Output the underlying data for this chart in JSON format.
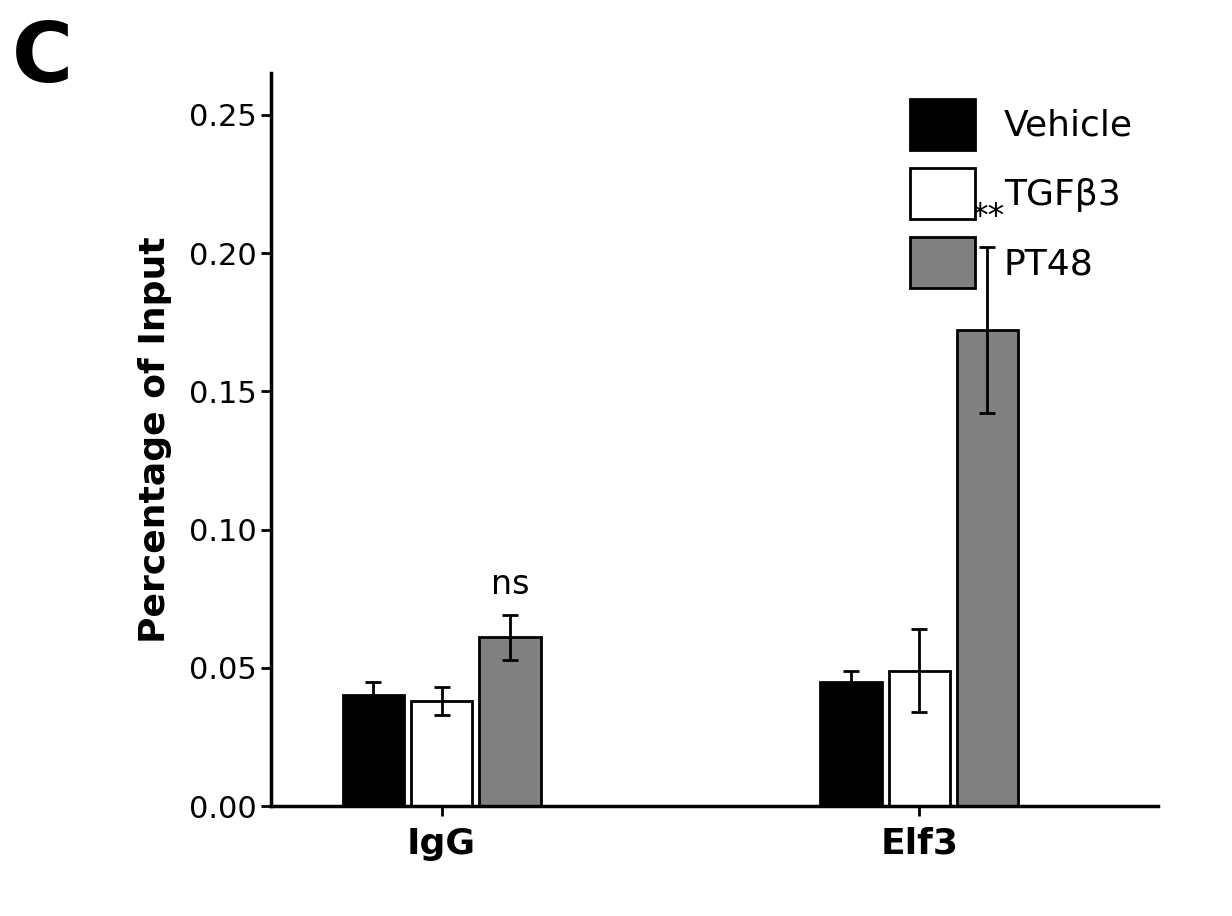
{
  "groups": [
    "IgG",
    "Elf3"
  ],
  "conditions": [
    "Vehicle",
    "TGFβ3",
    "PT48"
  ],
  "bar_colors": [
    "#000000",
    "#ffffff",
    "#808080"
  ],
  "values": {
    "IgG": [
      0.04,
      0.038,
      0.061
    ],
    "Elf3": [
      0.045,
      0.049,
      0.172
    ]
  },
  "errors": {
    "IgG": [
      0.005,
      0.005,
      0.008
    ],
    "Elf3": [
      0.004,
      0.015,
      0.03
    ]
  },
  "ylabel": "Percentage of Input",
  "ylim": [
    0.0,
    0.265
  ],
  "yticks": [
    0.0,
    0.05,
    0.1,
    0.15,
    0.2,
    0.25
  ],
  "panel_label": "C",
  "significance": {
    "IgG": "ns",
    "Elf3": "**"
  },
  "background_color": "#ffffff",
  "bar_width": 0.2,
  "group_centers": [
    1.0,
    2.4
  ],
  "legend_labels": [
    "Vehicle",
    "TGFβ3",
    "PT48"
  ],
  "xlim": [
    0.5,
    3.1
  ]
}
